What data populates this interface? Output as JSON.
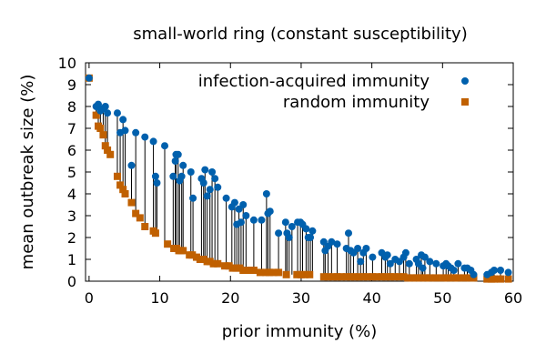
{
  "chart_data": {
    "type": "scatter",
    "title": "small-world ring (constant susceptibility)",
    "xlabel": "prior immunity (%)",
    "ylabel": "mean outbreak size (%)",
    "xlim": [
      -0.5,
      60
    ],
    "ylim": [
      0,
      10
    ],
    "xticks": [
      0,
      10,
      20,
      30,
      40,
      50,
      60
    ],
    "yticks": [
      0,
      1,
      2,
      3,
      4,
      5,
      6,
      7,
      8,
      9,
      10
    ],
    "legend_position": "top-right",
    "colors": {
      "infection": "#0060ad",
      "random": "#c06000"
    },
    "series": [
      {
        "name": "infection-acquired immunity",
        "marker": "circle",
        "points": [
          [
            0,
            9.3
          ],
          [
            1,
            8.0
          ],
          [
            1.3,
            8.1
          ],
          [
            1.6,
            7.8
          ],
          [
            2,
            7.9
          ],
          [
            2.3,
            8.0
          ],
          [
            2.6,
            7.7
          ],
          [
            4,
            7.7
          ],
          [
            4.4,
            6.8
          ],
          [
            4.8,
            7.4
          ],
          [
            5.1,
            6.9
          ],
          [
            6,
            5.3
          ],
          [
            6.6,
            6.8
          ],
          [
            7.9,
            6.6
          ],
          [
            9.1,
            6.4
          ],
          [
            9.4,
            4.8
          ],
          [
            9.6,
            4.5
          ],
          [
            10.7,
            6.2
          ],
          [
            11.9,
            4.8
          ],
          [
            12.2,
            5.5
          ],
          [
            12.3,
            5.8
          ],
          [
            12.6,
            5.8
          ],
          [
            12.8,
            4.6
          ],
          [
            13.1,
            4.8
          ],
          [
            13.3,
            5.3
          ],
          [
            14.4,
            5.0
          ],
          [
            14.7,
            3.8
          ],
          [
            15.9,
            4.7
          ],
          [
            16.2,
            4.5
          ],
          [
            16.4,
            5.1
          ],
          [
            16.7,
            3.9
          ],
          [
            17.1,
            4.2
          ],
          [
            17.4,
            5.0
          ],
          [
            17.8,
            4.7
          ],
          [
            18.2,
            4.3
          ],
          [
            19.4,
            3.8
          ],
          [
            20.2,
            3.4
          ],
          [
            20.6,
            3.6
          ],
          [
            20.9,
            2.6
          ],
          [
            21.2,
            3.3
          ],
          [
            21.5,
            2.7
          ],
          [
            21.8,
            3.5
          ],
          [
            22.2,
            3.0
          ],
          [
            23.3,
            2.8
          ],
          [
            24.4,
            2.8
          ],
          [
            25.1,
            4.0
          ],
          [
            25.3,
            3.1
          ],
          [
            25.6,
            3.2
          ],
          [
            26.8,
            2.2
          ],
          [
            27.8,
            2.7
          ],
          [
            28,
            2.2
          ],
          [
            28.3,
            2.0
          ],
          [
            28.7,
            2.5
          ],
          [
            29.5,
            2.7
          ],
          [
            29.9,
            2.7
          ],
          [
            30.2,
            2.6
          ],
          [
            30.7,
            2.4
          ],
          [
            31,
            2.0
          ],
          [
            31.3,
            2.0
          ],
          [
            31.6,
            2.3
          ],
          [
            33.2,
            1.8
          ],
          [
            33.4,
            1.4
          ],
          [
            33.8,
            1.6
          ],
          [
            34.3,
            1.8
          ],
          [
            35.1,
            1.7
          ],
          [
            36.4,
            1.5
          ],
          [
            36.7,
            2.2
          ],
          [
            37,
            1.4
          ],
          [
            37.4,
            1.3
          ],
          [
            38,
            1.5
          ],
          [
            38.4,
            0.9
          ],
          [
            38.8,
            1.3
          ],
          [
            39.2,
            1.5
          ],
          [
            40.1,
            1.1
          ],
          [
            41.4,
            1.3
          ],
          [
            41.9,
            1.1
          ],
          [
            42.2,
            1.2
          ],
          [
            42.6,
            0.8
          ],
          [
            43.3,
            1.0
          ],
          [
            43.9,
            0.9
          ],
          [
            44.5,
            1.1
          ],
          [
            44.8,
            1.3
          ],
          [
            45.3,
            0.8
          ],
          [
            46.3,
            1.0
          ],
          [
            46.6,
            0.8
          ],
          [
            47,
            1.2
          ],
          [
            47.2,
            0.6
          ],
          [
            47.5,
            1.1
          ],
          [
            48.2,
            0.9
          ],
          [
            49.1,
            0.8
          ],
          [
            50.1,
            0.7
          ],
          [
            50.5,
            0.8
          ],
          [
            50.8,
            0.7
          ],
          [
            51.2,
            0.6
          ],
          [
            51.6,
            0.5
          ],
          [
            52.2,
            0.8
          ],
          [
            53.1,
            0.6
          ],
          [
            53.5,
            0.6
          ],
          [
            54,
            0.5
          ],
          [
            54.4,
            0.3
          ],
          [
            56.3,
            0.3
          ],
          [
            56.9,
            0.4
          ],
          [
            57.3,
            0.5
          ],
          [
            58.2,
            0.5
          ],
          [
            59.3,
            0.4
          ]
        ]
      },
      {
        "name": "random immunity",
        "marker": "square",
        "points": [
          [
            0,
            9.3
          ],
          [
            1,
            7.6
          ],
          [
            1.3,
            7.1
          ],
          [
            1.6,
            7.0
          ],
          [
            2,
            6.7
          ],
          [
            2.3,
            6.2
          ],
          [
            2.6,
            6.0
          ],
          [
            3,
            5.8
          ],
          [
            4,
            4.8
          ],
          [
            4.4,
            4.4
          ],
          [
            4.8,
            4.2
          ],
          [
            5.1,
            4.0
          ],
          [
            6,
            3.6
          ],
          [
            6.6,
            3.1
          ],
          [
            7.2,
            2.9
          ],
          [
            7.9,
            2.5
          ],
          [
            9.1,
            2.3
          ],
          [
            9.4,
            2.2
          ],
          [
            11.1,
            1.7
          ],
          [
            12,
            1.5
          ],
          [
            12.4,
            1.5
          ],
          [
            12.7,
            1.4
          ],
          [
            13,
            1.4
          ],
          [
            13.3,
            1.4
          ],
          [
            14.2,
            1.2
          ],
          [
            14.6,
            1.2
          ],
          [
            15.2,
            1.1
          ],
          [
            15.7,
            1.0
          ],
          [
            16.2,
            1.0
          ],
          [
            16.7,
            0.9
          ],
          [
            17.1,
            0.9
          ],
          [
            17.6,
            0.8
          ],
          [
            18.2,
            0.8
          ],
          [
            19.2,
            0.7
          ],
          [
            19.8,
            0.7
          ],
          [
            20.3,
            0.6
          ],
          [
            20.8,
            0.6
          ],
          [
            21.3,
            0.6
          ],
          [
            21.8,
            0.5
          ],
          [
            22.5,
            0.5
          ],
          [
            23.3,
            0.5
          ],
          [
            24.2,
            0.4
          ],
          [
            25,
            0.4
          ],
          [
            25.5,
            0.4
          ],
          [
            26.1,
            0.4
          ],
          [
            26.8,
            0.4
          ],
          [
            27.9,
            0.3
          ],
          [
            29.4,
            0.3
          ],
          [
            30,
            0.3
          ],
          [
            30.5,
            0.3
          ],
          [
            31.2,
            0.3
          ],
          [
            33.2,
            0.2
          ],
          [
            33.8,
            0.2
          ],
          [
            34.5,
            0.2
          ],
          [
            35.1,
            0.2
          ],
          [
            35.7,
            0.2
          ],
          [
            36.4,
            0.2
          ],
          [
            37,
            0.2
          ],
          [
            37.6,
            0.2
          ],
          [
            38.2,
            0.2
          ],
          [
            38.8,
            0.2
          ],
          [
            39.4,
            0.2
          ],
          [
            40.1,
            0.2
          ],
          [
            40.7,
            0.2
          ],
          [
            41.4,
            0.2
          ],
          [
            42,
            0.2
          ],
          [
            42.6,
            0.2
          ],
          [
            43.2,
            0.2
          ],
          [
            43.9,
            0.2
          ],
          [
            44.5,
            0.2
          ],
          [
            45.1,
            0.15
          ],
          [
            45.7,
            0.15
          ],
          [
            46.3,
            0.15
          ],
          [
            46.9,
            0.15
          ],
          [
            47.6,
            0.15
          ],
          [
            48.2,
            0.15
          ],
          [
            49.1,
            0.15
          ],
          [
            50.1,
            0.15
          ],
          [
            50.8,
            0.15
          ],
          [
            51.6,
            0.15
          ],
          [
            52.2,
            0.15
          ],
          [
            53.1,
            0.15
          ],
          [
            54,
            0.15
          ],
          [
            54.4,
            0.15
          ],
          [
            56.3,
            0.1
          ],
          [
            56.9,
            0.1
          ],
          [
            57.3,
            0.1
          ],
          [
            58.2,
            0.1
          ],
          [
            59.3,
            0.1
          ]
        ]
      }
    ]
  }
}
